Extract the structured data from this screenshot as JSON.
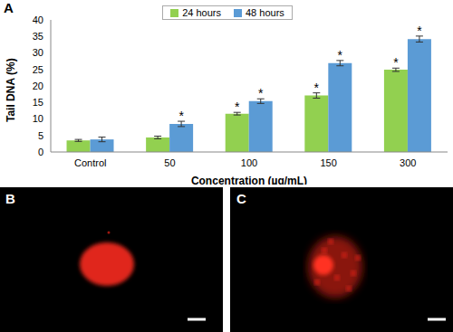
{
  "panel_labels": [
    "A",
    "B",
    "C"
  ],
  "chart_data": {
    "type": "bar",
    "x_label": "Concentration (µg/mL)",
    "y_label": "Tail DNA (%)",
    "categories": [
      "Control",
      "50",
      "100",
      "150",
      "300"
    ],
    "series": [
      {
        "name": "24 hours",
        "color": "#92d050",
        "values": [
          3.5,
          4.4,
          11.6,
          17.1,
          24.9
        ],
        "errors": [
          0.3,
          0.4,
          0.4,
          0.8,
          0.5
        ]
      },
      {
        "name": "48 hours",
        "color": "#5b9bd5",
        "values": [
          3.8,
          8.5,
          15.4,
          26.9,
          34.2
        ],
        "errors": [
          0.7,
          0.8,
          0.7,
          0.8,
          0.9
        ]
      }
    ],
    "annotations": [
      {
        "text": "*",
        "category": "50",
        "series": "48 hours"
      },
      {
        "text": "*",
        "category": "100",
        "series": "24 hours"
      },
      {
        "text": "*",
        "category": "100",
        "series": "48 hours"
      },
      {
        "text": "*",
        "category": "150",
        "series": "24 hours"
      },
      {
        "text": "*",
        "category": "150",
        "series": "48 hours"
      },
      {
        "text": "*",
        "category": "300",
        "series": "24 hours"
      },
      {
        "text": "*",
        "category": "300",
        "series": "48 hours"
      }
    ],
    "ylim": [
      0,
      40
    ],
    "yticks": [
      0,
      5,
      10,
      15,
      20,
      25,
      30,
      35,
      40
    ],
    "grid": false,
    "legend": "top"
  }
}
